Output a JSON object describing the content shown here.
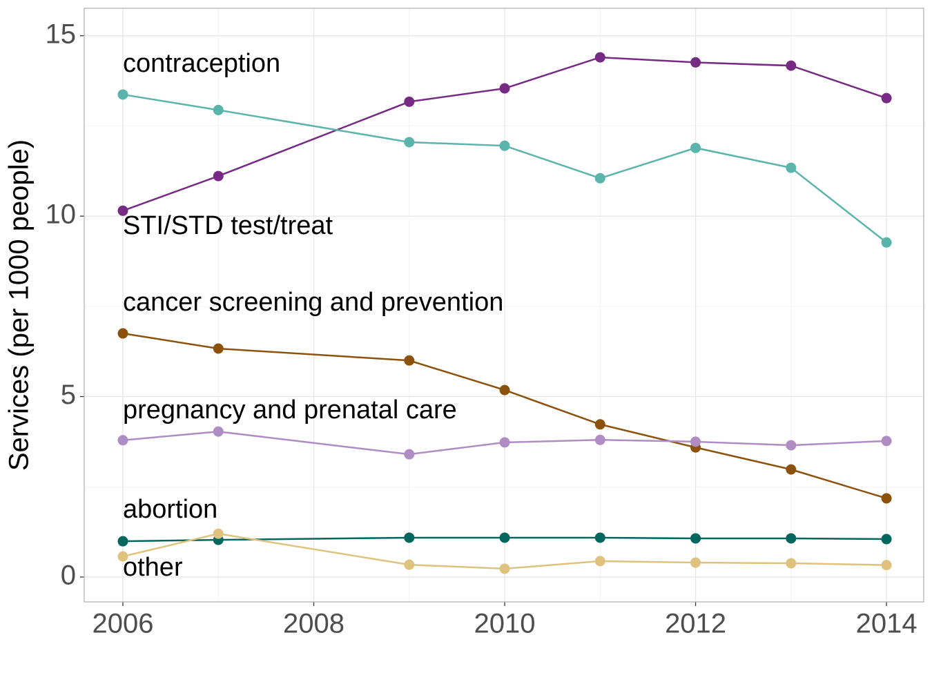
{
  "chart_data": {
    "type": "line",
    "y_label": "Services (per 1000 people)",
    "x": [
      2006,
      2007,
      2009,
      2010,
      2011,
      2012,
      2013,
      2014
    ],
    "series": [
      {
        "name": "contraception",
        "color": "#762a83",
        "values": [
          10.15,
          11.11,
          13.17,
          13.54,
          14.4,
          14.26,
          14.17,
          13.27
        ]
      },
      {
        "name": "STI/STD test/treat",
        "color": "#5ab4ac",
        "values": [
          13.37,
          12.94,
          12.05,
          11.95,
          11.05,
          11.89,
          11.34,
          9.27
        ]
      },
      {
        "name": "cancer screening and prevention",
        "color": "#8c510a",
        "values": [
          6.75,
          6.33,
          6.0,
          5.18,
          4.23,
          3.59,
          2.98,
          2.18
        ]
      },
      {
        "name": "pregnancy and prenatal care",
        "color": "#af8dc3",
        "values": [
          3.79,
          4.03,
          3.4,
          3.73,
          3.8,
          3.75,
          3.65,
          3.77
        ]
      },
      {
        "name": "abortion",
        "color": "#01665e",
        "values": [
          0.99,
          1.03,
          1.09,
          1.09,
          1.09,
          1.07,
          1.07,
          1.05
        ]
      },
      {
        "name": "other",
        "color": "#dfc27d",
        "values": [
          0.57,
          1.2,
          0.34,
          0.23,
          0.44,
          0.4,
          0.38,
          0.33
        ]
      }
    ],
    "xlim": [
      2005.595,
      2014.39
    ],
    "xticks": [
      2006,
      2008,
      2010,
      2012,
      2014
    ],
    "ylim": [
      -0.69,
      15.76
    ],
    "yticks": [
      0,
      5,
      10,
      15
    ],
    "grid": true
  }
}
